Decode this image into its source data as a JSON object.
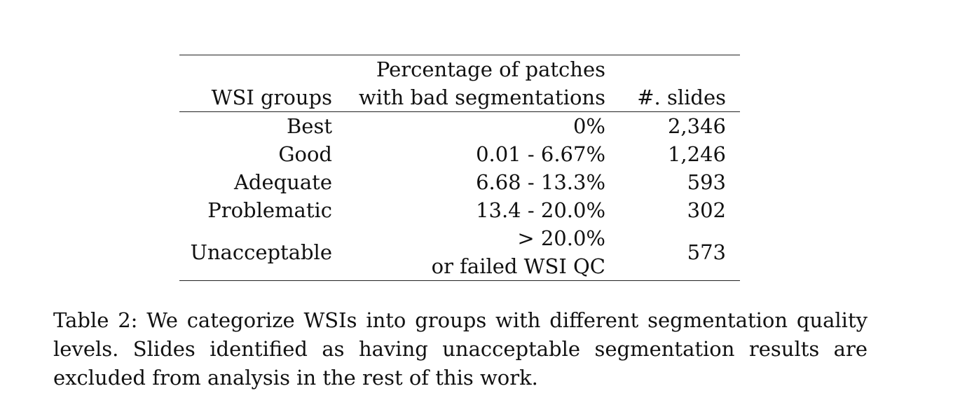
{
  "table": {
    "headers": {
      "group": "WSI groups",
      "percentage_line1": "Percentage of patches",
      "percentage_line2": "with bad segmentations",
      "slides": "#. slides"
    },
    "rows": [
      {
        "group": "Best",
        "percentage": "0%",
        "slides": "2,346"
      },
      {
        "group": "Good",
        "percentage": "0.01 - 6.67%",
        "slides": "1,246"
      },
      {
        "group": "Adequate",
        "percentage": "6.68 - 13.3%",
        "slides": "593"
      },
      {
        "group": "Problematic",
        "percentage": "13.4 - 20.0%",
        "slides": "302"
      },
      {
        "group": "Unacceptable",
        "percentage": "> 20.0%",
        "percentage_line2": "or failed WSI QC",
        "slides": "573"
      }
    ]
  },
  "caption": {
    "text": "Table 2: We categorize WSIs into groups with different segmentation quality levels. Slides identified as having unacceptable segmentation results are excluded from analysis in the rest of this work."
  }
}
